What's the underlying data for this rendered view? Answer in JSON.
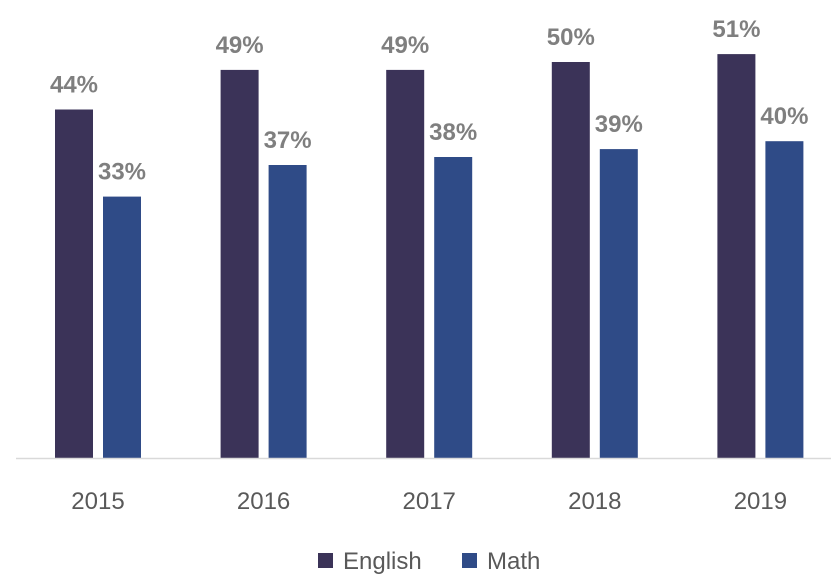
{
  "chart_data": {
    "type": "bar",
    "categories": [
      "2015",
      "2016",
      "2017",
      "2018",
      "2019"
    ],
    "series": [
      {
        "name": "English",
        "values": [
          44,
          49,
          49,
          50,
          51
        ],
        "labels": [
          "44%",
          "49%",
          "49%",
          "50%",
          "51%"
        ],
        "color": "#3b3358"
      },
      {
        "name": "Math",
        "values": [
          33,
          37,
          38,
          39,
          40
        ],
        "labels": [
          "33%",
          "37%",
          "38%",
          "39%",
          "40%"
        ],
        "color": "#2f4b87"
      }
    ],
    "value_unit": "%",
    "ylim": [
      0,
      57
    ],
    "grid": false,
    "legend": "bottom",
    "baseline_color": "#d9d9d9",
    "data_label_color": "#7f7f7f",
    "tick_label_color": "#595959"
  }
}
